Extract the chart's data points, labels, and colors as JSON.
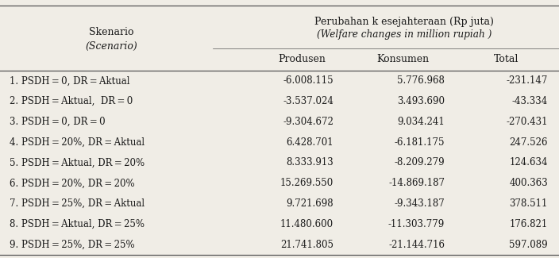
{
  "title_line1": "Perubahan k esejahteraan (Rp juta)",
  "title_line2": "(Welfare changes in million rupiah )",
  "col_header_left1": "Skenario",
  "col_header_left2": "(Scenario)",
  "col_headers": [
    "Produsen",
    "Konsumen",
    "Total"
  ],
  "rows": [
    {
      "scenario": "1. PSDH = 0, DR = Aktual",
      "produsen": "-6.008.115",
      "konsumen": "5.776.968",
      "total": "-231.147"
    },
    {
      "scenario": "2. PSDH = Aktual,  DR = 0",
      "produsen": "-3.537.024",
      "konsumen": "3.493.690",
      "total": "-43.334"
    },
    {
      "scenario": "3. PSDH = 0, DR = 0",
      "produsen": "-9.304.672",
      "konsumen": "9.034.241",
      "total": "-270.431"
    },
    {
      "scenario": "4. PSDH = 20%, DR = Aktual",
      "produsen": "6.428.701",
      "konsumen": "-6.181.175",
      "total": "247.526"
    },
    {
      "scenario": "5. PSDH = Aktual, DR = 20%",
      "produsen": "8.333.913",
      "konsumen": "-8.209.279",
      "total": "124.634"
    },
    {
      "scenario": "6. PSDH = 20%, DR = 20%",
      "produsen": "15.269.550",
      "konsumen": "-14.869.187",
      "total": "400.363"
    },
    {
      "scenario": "7. PSDH = 25%, DR = Aktual",
      "produsen": "9.721.698",
      "konsumen": "-9.343.187",
      "total": "378.511"
    },
    {
      "scenario": "8. PSDH = Aktual, DR = 25%",
      "produsen": "11.480.600",
      "konsumen": "-11.303.779",
      "total": "176.821"
    },
    {
      "scenario": "9. PSDH = 25%, DR = 25%",
      "produsen": "21.741.805",
      "konsumen": "-21.144.716",
      "total": "597.089"
    }
  ],
  "bg_color": "#f0ede6",
  "text_color": "#1a1a1a",
  "line_color": "#555555",
  "fs_title": 9.0,
  "fs_header": 9.0,
  "fs_data": 8.5
}
